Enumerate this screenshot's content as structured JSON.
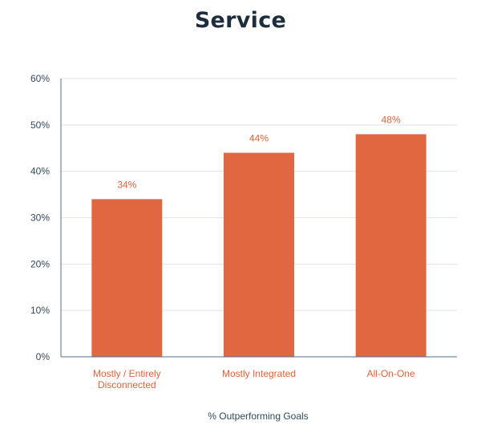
{
  "chart_data": {
    "type": "bar",
    "title": "Service",
    "xlabel": "% Outperforming Goals",
    "ylabel": "",
    "categories": [
      [
        "Mostly / Entirely",
        "Disconnected"
      ],
      [
        "Mostly Integrated"
      ],
      [
        "All-On-One"
      ]
    ],
    "values": [
      34,
      44,
      48
    ],
    "data_labels": [
      "34%",
      "44%",
      "48%"
    ],
    "ylim": [
      0,
      60
    ],
    "yticks": [
      0,
      10,
      20,
      30,
      40,
      50,
      60
    ],
    "ytick_labels": [
      "0%",
      "10%",
      "20%",
      "30%",
      "40%",
      "50%",
      "60%"
    ],
    "grid": true,
    "legend": "none",
    "colors": {
      "bar": "#e0673f",
      "label": "#e0623c",
      "axis": "#33475b",
      "grid": "#dfe3eb",
      "title": "#1e2d3b"
    }
  }
}
